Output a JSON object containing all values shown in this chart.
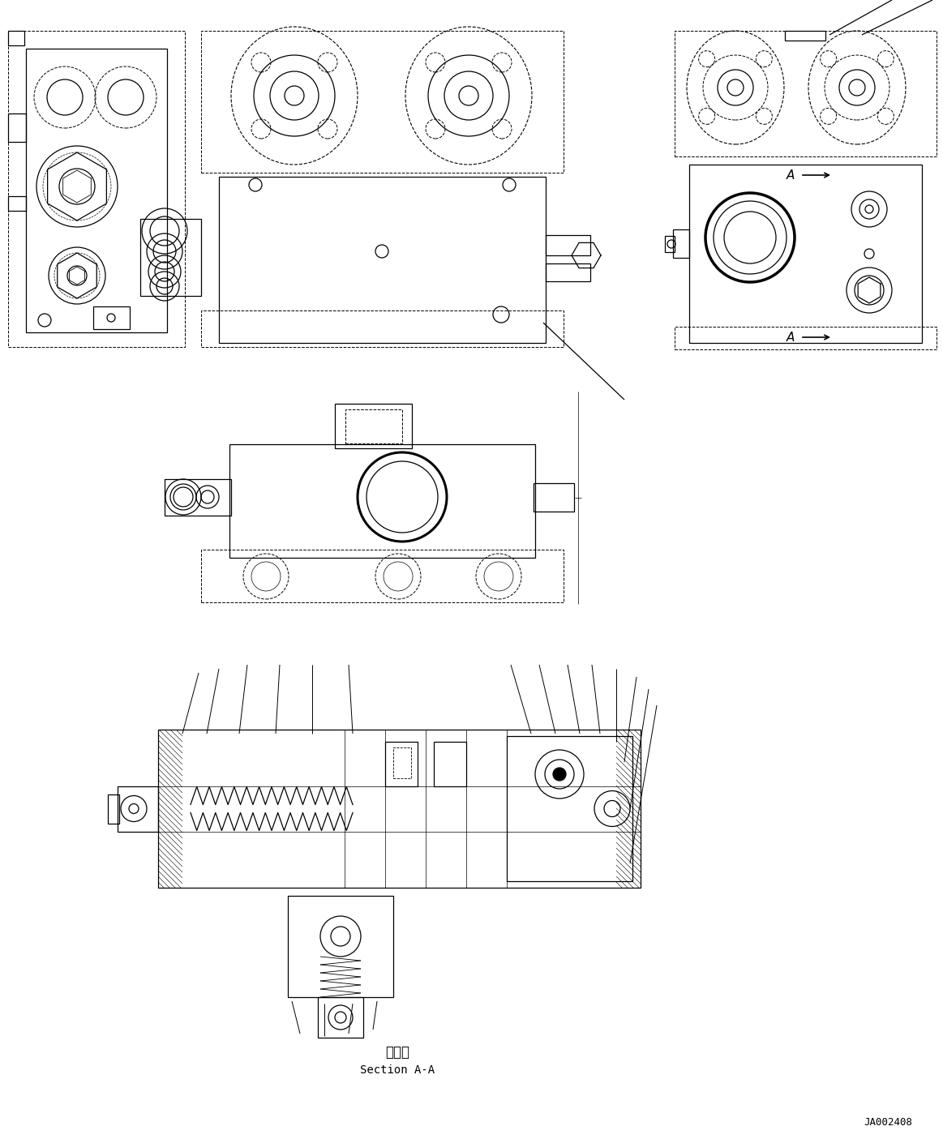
{
  "bg": "#ffffff",
  "lc": "#000000",
  "lw": 0.9,
  "title_jp": "断　面",
  "title_en": "Section A-A",
  "ref": "JA002408"
}
